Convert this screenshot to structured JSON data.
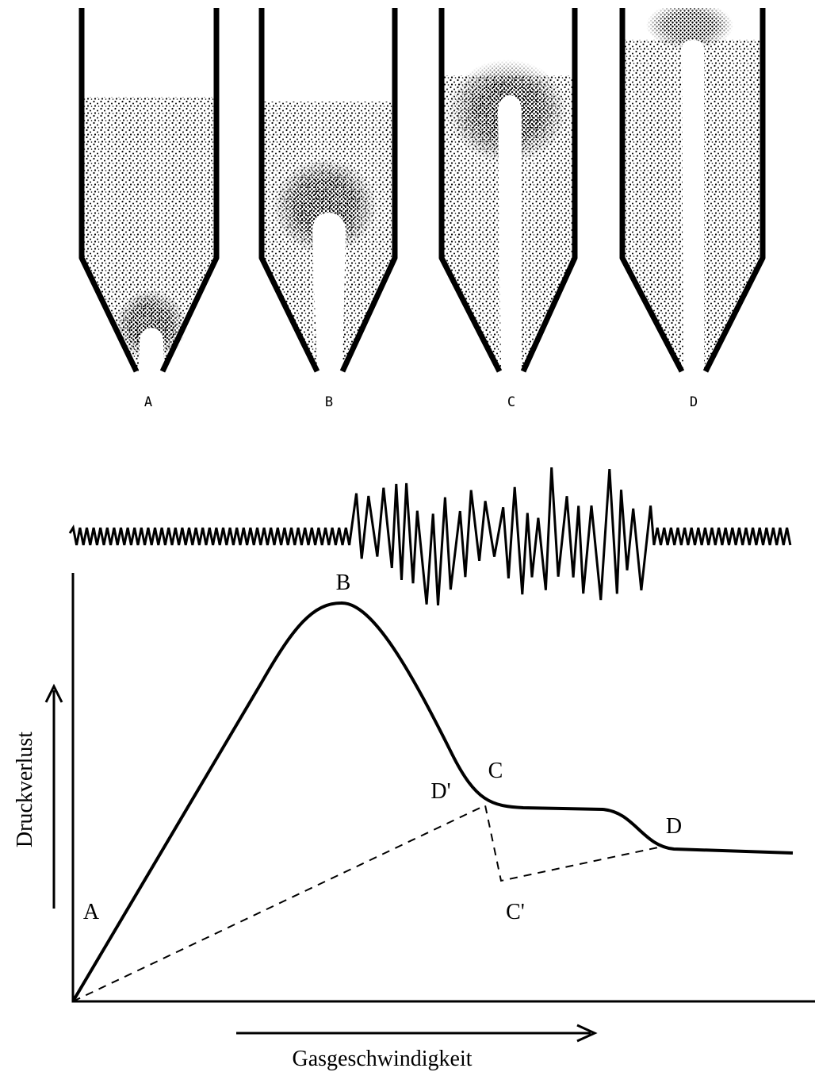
{
  "vessels": {
    "labels": [
      "A",
      "B",
      "C",
      "D"
    ]
  },
  "curve": {
    "labels": {
      "A": "A",
      "B": "B",
      "C": "C",
      "D_prime": "D'",
      "D": "D",
      "C_prime": "C'"
    }
  },
  "axes": {
    "y_label": "Druckverlust",
    "x_label": "Gasgeschwindigkeit"
  }
}
